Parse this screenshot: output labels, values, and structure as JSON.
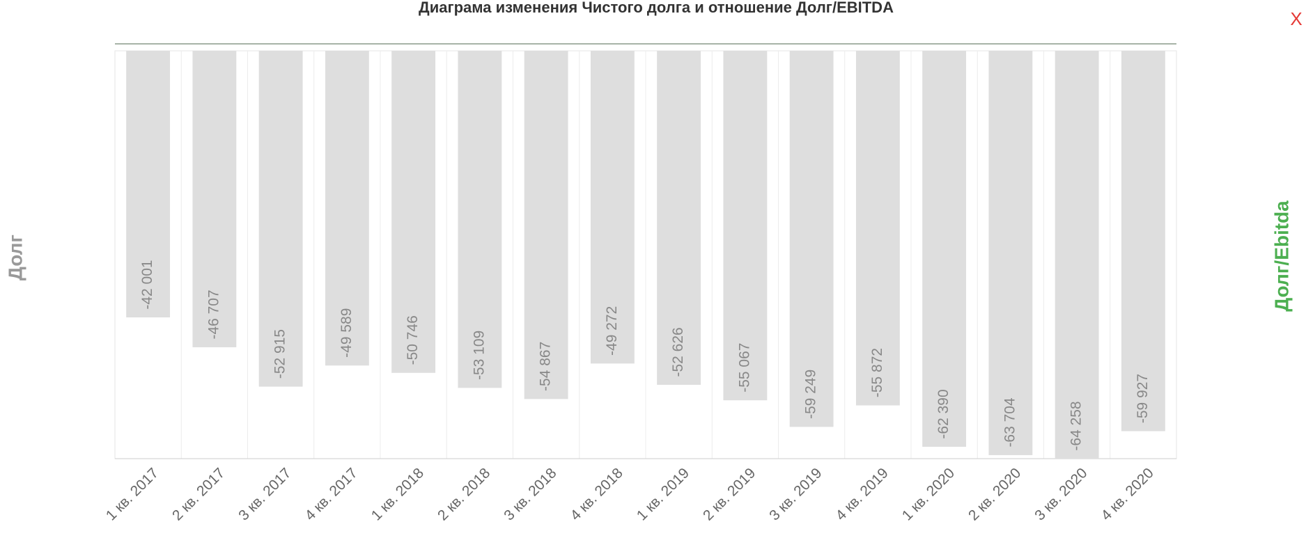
{
  "chart_data": {
    "type": "bar",
    "title": "Диаграма изменения Чистого долга и отношение Долг/EBITDA",
    "y_axis_label": "Долг",
    "y2_axis_label": "Долг/Ebitda",
    "categories": [
      "1 кв. 2017",
      "2 кв. 2017",
      "3 кв. 2017",
      "4 кв. 2017",
      "1 кв. 2018",
      "2 кв. 2018",
      "3 кв. 2018",
      "4 кв. 2018",
      "1 кв. 2019",
      "2 кв. 2019",
      "3 кв. 2019",
      "4 кв. 2019",
      "1 кв. 2020",
      "2 кв. 2020",
      "3 кв. 2020",
      "4 кв. 2020"
    ],
    "values": [
      -42001,
      -46707,
      -52915,
      -49589,
      -50746,
      -53109,
      -54867,
      -49272,
      -52626,
      -55067,
      -59249,
      -55872,
      -62390,
      -63704,
      -64258,
      -59927
    ],
    "value_labels": [
      "-42 001",
      "-46 707",
      "-52 915",
      "-49 589",
      "-50 746",
      "-53 109",
      "-54 867",
      "-49 272",
      "-52 626",
      "-55 067",
      "-59 249",
      "-55 872",
      "-62 390",
      "-63 704",
      "-64 258",
      "-59 927"
    ],
    "color": "#dedede",
    "ylim": [
      -64258,
      0
    ],
    "grid": true
  },
  "close_button": "X"
}
